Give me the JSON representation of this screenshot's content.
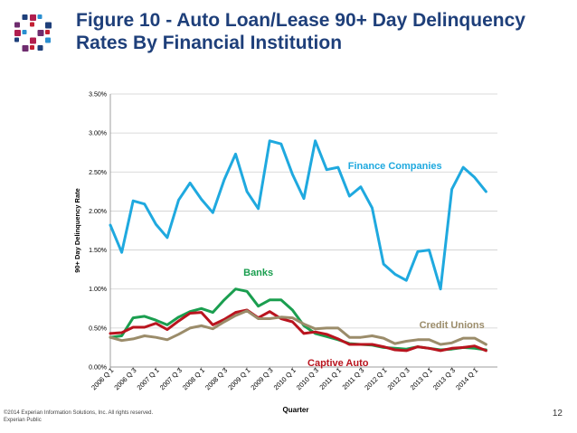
{
  "header": {
    "title_line1": "Figure 10 - Auto Loan/Lease 90+ Day Delinquency",
    "title_line2": "Rates By Financial Institution"
  },
  "footer": {
    "copyright": "©2014 Experian Information Solutions, Inc. All rights reserved.",
    "classification": "Experian Public",
    "page_number": "12"
  },
  "colors": {
    "logo_dots": [
      "#1e3f7a",
      "#b11e4e",
      "#2a8fd0",
      "#6e2c6e",
      "#c21f33"
    ]
  },
  "chart_data": {
    "type": "line",
    "title": "",
    "xlabel": "Quarter",
    "ylabel": "90+ Day Delinquency Rate",
    "ylim": [
      0,
      3.5
    ],
    "yticks": [
      "0.00%",
      "0.50%",
      "1.00%",
      "1.50%",
      "2.00%",
      "2.50%",
      "3.00%",
      "3.50%"
    ],
    "categories": [
      "2006 Q 1",
      "2006 Q 2",
      "2006 Q 3",
      "2006 Q 4",
      "2007 Q 1",
      "2007 Q 2",
      "2007 Q 3",
      "2007 Q 4",
      "2008 Q 1",
      "2008 Q 2",
      "2008 Q 3",
      "2008 Q 4",
      "2009 Q 1",
      "2009 Q 2",
      "2009 Q 3",
      "2009 Q 4",
      "2010 Q 1",
      "2010 Q 2",
      "2010 Q 3",
      "2010 Q 4",
      "2011 Q 1",
      "2011 Q 2",
      "2011 Q 3",
      "2011 Q 4",
      "2012 Q 1",
      "2012 Q 2",
      "2012 Q 3",
      "2012 Q 4",
      "2013 Q 1",
      "2013 Q 2",
      "2013 Q 3",
      "2013 Q 4",
      "2014 Q 1",
      "2014 Q 2",
      "2014 Q 3"
    ],
    "tick_labels": [
      "2006 Q 1",
      "2006 Q 3",
      "2007 Q 1",
      "2007 Q 3",
      "2008 Q 1",
      "2008 Q 3",
      "2009 Q 1",
      "2009 Q 3",
      "2010 Q 1",
      "2010 Q 3",
      "2011 Q 1",
      "2011 Q 3",
      "2012 Q 1",
      "2012 Q 3",
      "2013 Q 1",
      "2013 Q 3",
      "2014 Q 1"
    ],
    "series": [
      {
        "name": "Finance Companies",
        "color": "#1fa9df",
        "values": [
          1.82,
          1.47,
          2.13,
          2.09,
          1.83,
          1.66,
          2.14,
          2.36,
          2.15,
          1.98,
          2.4,
          2.73,
          2.25,
          2.03,
          2.9,
          2.86,
          2.47,
          2.16,
          2.9,
          2.53,
          2.56,
          2.19,
          2.31,
          2.04,
          1.32,
          1.19,
          1.11,
          1.48,
          1.5,
          1.0,
          2.28,
          2.56,
          2.43,
          2.25,
          null
        ]
      },
      {
        "name": "Banks",
        "color": "#1a9e4f",
        "values": [
          0.38,
          0.4,
          0.63,
          0.65,
          0.6,
          0.54,
          0.64,
          0.71,
          0.75,
          0.7,
          0.86,
          1.0,
          0.97,
          0.78,
          0.86,
          0.86,
          0.73,
          0.53,
          0.43,
          0.39,
          0.35,
          0.3,
          0.29,
          0.28,
          0.25,
          0.24,
          0.23,
          0.26,
          0.24,
          0.22,
          0.23,
          0.25,
          0.24,
          0.22,
          null
        ]
      },
      {
        "name": "Captive Auto",
        "color": "#b9141e",
        "values": [
          0.43,
          0.44,
          0.51,
          0.51,
          0.56,
          0.48,
          0.59,
          0.69,
          0.7,
          0.54,
          0.61,
          0.7,
          0.73,
          0.63,
          0.71,
          0.62,
          0.58,
          0.43,
          0.45,
          0.42,
          0.36,
          0.29,
          0.29,
          0.29,
          0.26,
          0.22,
          0.21,
          0.26,
          0.24,
          0.21,
          0.24,
          0.25,
          0.27,
          0.21,
          null
        ]
      },
      {
        "name": "Credit Unions",
        "color": "#9b8c6a",
        "values": [
          0.38,
          0.34,
          0.36,
          0.4,
          0.38,
          0.35,
          0.42,
          0.5,
          0.53,
          0.49,
          0.58,
          0.66,
          0.72,
          0.62,
          0.62,
          0.64,
          0.63,
          0.55,
          0.49,
          0.5,
          0.5,
          0.38,
          0.38,
          0.4,
          0.37,
          0.3,
          0.33,
          0.35,
          0.35,
          0.29,
          0.31,
          0.37,
          0.37,
          0.29,
          null
        ]
      }
    ],
    "annotations": [
      {
        "text": "Finance Companies",
        "series": "Finance Companies"
      },
      {
        "text": "Banks",
        "series": "Banks"
      },
      {
        "text": "Credit Unions",
        "series": "Credit Unions"
      },
      {
        "text": "Captive Auto",
        "series": "Captive Auto"
      }
    ],
    "grid": true
  }
}
